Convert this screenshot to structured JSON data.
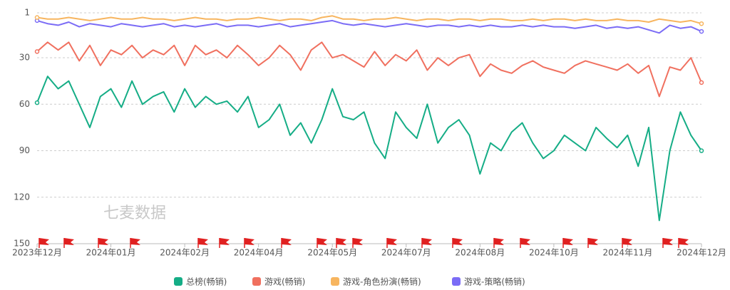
{
  "chart_data": {
    "type": "line",
    "watermark": "七麦数据",
    "y_inverted": true,
    "ylim": [
      1,
      150
    ],
    "yticks": [
      1,
      30,
      60,
      90,
      120,
      150
    ],
    "grid": true,
    "legend": "bottom",
    "categories": [
      "2023年12月",
      null,
      null,
      null,
      null,
      null,
      null,
      "2024年01月",
      null,
      null,
      null,
      null,
      null,
      null,
      "2024年02月",
      null,
      null,
      null,
      null,
      null,
      null,
      "2024年04月",
      null,
      null,
      null,
      null,
      null,
      null,
      "2024年05月",
      null,
      null,
      null,
      null,
      null,
      null,
      "2024年07月",
      null,
      null,
      null,
      null,
      null,
      null,
      "2024年08月",
      null,
      null,
      null,
      null,
      null,
      null,
      "2024年10月",
      null,
      null,
      null,
      null,
      null,
      null,
      "2024年11月",
      null,
      null,
      null,
      null,
      null,
      null,
      "2024年12月"
    ],
    "series": [
      {
        "name": "总榜(畅销)",
        "color": "#15ad86",
        "values": [
          59,
          42,
          50,
          45,
          60,
          75,
          55,
          50,
          62,
          45,
          60,
          55,
          52,
          65,
          50,
          62,
          55,
          60,
          58,
          65,
          55,
          75,
          70,
          60,
          80,
          72,
          85,
          70,
          50,
          68,
          70,
          65,
          85,
          95,
          65,
          75,
          82,
          60,
          85,
          75,
          70,
          80,
          105,
          85,
          90,
          78,
          72,
          85,
          95,
          90,
          80,
          85,
          90,
          75,
          82,
          88,
          80,
          100,
          75,
          135,
          90,
          65,
          80,
          90
        ]
      },
      {
        "name": "游戏(畅销)",
        "color": "#f0705f",
        "values": [
          26,
          20,
          25,
          20,
          32,
          22,
          35,
          25,
          28,
          22,
          30,
          25,
          28,
          22,
          35,
          22,
          28,
          25,
          30,
          22,
          28,
          35,
          30,
          22,
          28,
          38,
          25,
          20,
          30,
          28,
          32,
          36,
          26,
          35,
          28,
          32,
          25,
          38,
          30,
          35,
          30,
          28,
          42,
          34,
          38,
          40,
          35,
          32,
          36,
          38,
          40,
          35,
          32,
          34,
          36,
          38,
          34,
          40,
          35,
          55,
          36,
          38,
          30,
          46
        ]
      },
      {
        "name": "游戏-角色扮演(畅销)",
        "color": "#f7b55f",
        "values": [
          4,
          5,
          5,
          4,
          5,
          6,
          5,
          4,
          5,
          5,
          4,
          5,
          5,
          6,
          5,
          4,
          5,
          5,
          6,
          5,
          5,
          4,
          5,
          6,
          5,
          5,
          6,
          4,
          3,
          5,
          5,
          6,
          5,
          5,
          4,
          5,
          6,
          5,
          5,
          6,
          5,
          5,
          6,
          5,
          5,
          6,
          6,
          5,
          6,
          5,
          5,
          6,
          5,
          6,
          6,
          5,
          6,
          6,
          7,
          5,
          6,
          7,
          6,
          8
        ]
      },
      {
        "name": "游戏-策略(畅销)",
        "color": "#7b6cf6",
        "values": [
          6,
          8,
          9,
          7,
          10,
          8,
          9,
          10,
          8,
          9,
          10,
          9,
          8,
          10,
          9,
          10,
          9,
          8,
          10,
          9,
          9,
          10,
          9,
          8,
          10,
          9,
          8,
          7,
          6,
          8,
          9,
          8,
          9,
          10,
          9,
          8,
          9,
          10,
          9,
          9,
          10,
          9,
          10,
          9,
          10,
          10,
          9,
          10,
          9,
          10,
          10,
          11,
          10,
          9,
          11,
          10,
          11,
          10,
          12,
          14,
          9,
          11,
          10,
          13
        ]
      }
    ]
  }
}
